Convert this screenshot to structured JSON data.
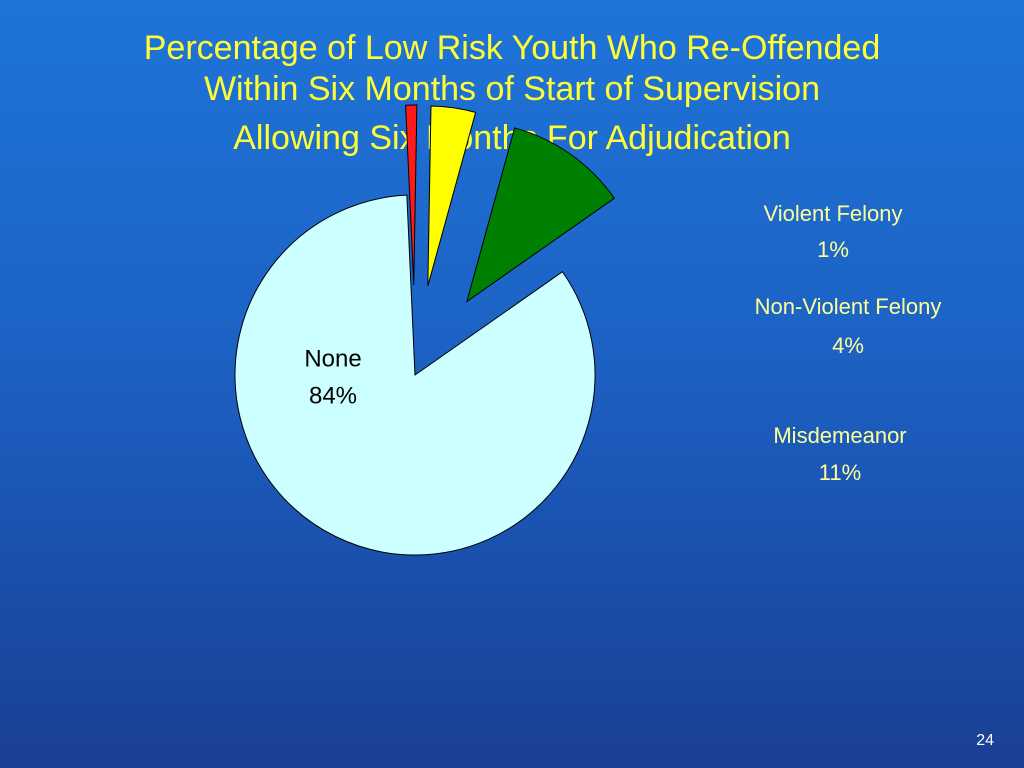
{
  "slide": {
    "title_lines": [
      "Percentage of Low Risk Youth Who Re-Offended",
      "Within Six Months of Start of Supervision",
      "Allowing Six Months For Adjudication"
    ],
    "page_number": "24"
  },
  "colors": {
    "title": "#ffff33",
    "label": "#ffff99",
    "inner_label": "#000000",
    "slice_stroke": "#000000"
  },
  "chart_data": {
    "type": "pie",
    "title": "Percentage of Low Risk Youth Who Re-Offended Within Six Months of Start of Supervision Allowing Six Months For Adjudication",
    "slices": [
      {
        "label": "None",
        "value": 84,
        "value_label": "84%",
        "color": "#ccffff",
        "exploded": false,
        "label_inside": true
      },
      {
        "label": "Violent Felony",
        "value": 1,
        "value_label": "1%",
        "color": "#ff1a1a",
        "exploded": true,
        "label_inside": false
      },
      {
        "label": "Non-Violent Felony",
        "value": 4,
        "value_label": "4%",
        "color": "#ffff00",
        "exploded": true,
        "label_inside": false
      },
      {
        "label": "Misdemeanor",
        "value": 11,
        "value_label": "11%",
        "color": "#008000",
        "exploded": true,
        "label_inside": false
      }
    ]
  }
}
